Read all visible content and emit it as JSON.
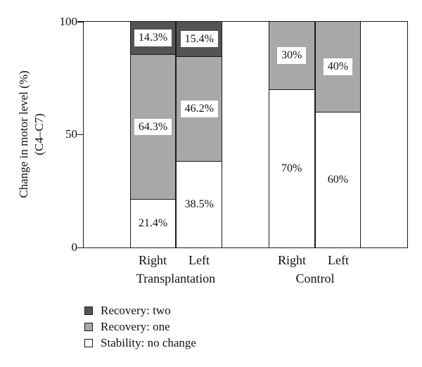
{
  "figure": {
    "y_axis": {
      "label_line1": "Change in motor level (%)",
      "label_line2": "(C4–C7)",
      "ticks": [
        "100",
        "50",
        "0"
      ]
    },
    "x_axis": {
      "bar_labels": [
        "Right",
        "Left",
        "Right",
        "Left"
      ],
      "group_labels": [
        "Transplantation",
        "Control"
      ]
    }
  },
  "chart_data": {
    "type": "bar",
    "stacked": true,
    "categories": [
      "Transplantation Right",
      "Transplantation Left",
      "Control Right",
      "Control Left"
    ],
    "series": [
      {
        "name": "Recovery: two",
        "color": "#545454",
        "values": [
          14.3,
          15.4,
          0,
          0
        ],
        "labels": [
          "14.3%",
          "15.4%",
          "",
          ""
        ]
      },
      {
        "name": "Recovery: one",
        "color": "#a8a8a8",
        "values": [
          64.3,
          46.2,
          30,
          40
        ],
        "labels": [
          "64.3%",
          "46.2%",
          "30%",
          "40%"
        ]
      },
      {
        "name": "Stability: no change",
        "color": "#ffffff",
        "values": [
          21.4,
          38.5,
          70,
          60
        ],
        "labels": [
          "21.4%",
          "38.5%",
          "70%",
          "60%"
        ]
      }
    ],
    "title": "",
    "xlabel": "",
    "ylabel": "Change in motor level (%) (C4–C7)",
    "ylim": [
      0,
      100
    ],
    "y_ticks": [
      0,
      50,
      100
    ],
    "grid": false,
    "legend_position": "bottom-left"
  },
  "legend": {
    "items": [
      {
        "label": "Recovery: two",
        "color": "#545454"
      },
      {
        "label": "Recovery: one",
        "color": "#a8a8a8"
      },
      {
        "label": "Stability: no change",
        "color": "#ffffff"
      }
    ]
  }
}
